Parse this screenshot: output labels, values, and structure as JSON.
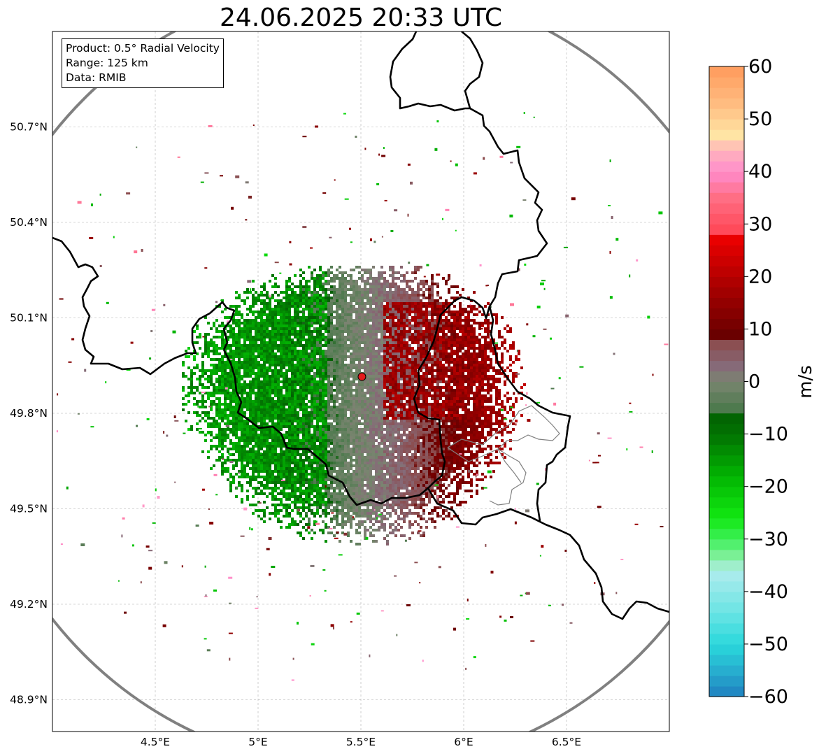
{
  "title": "24.06.2025 20:33 UTC",
  "info_box": {
    "product": "Product: 0.5° Radial Velocity",
    "range": "Range: 125 km",
    "data": "Data: RMIB"
  },
  "map": {
    "lon_range": [
      4.0,
      7.0
    ],
    "lat_range": [
      48.8,
      51.0
    ],
    "lon_ticks": [
      {
        "value": 4.5,
        "label": "4.5°E"
      },
      {
        "value": 5.0,
        "label": "5°E"
      },
      {
        "value": 5.5,
        "label": "5.5°E"
      },
      {
        "value": 6.0,
        "label": "6°E"
      },
      {
        "value": 6.5,
        "label": "6.5°E"
      }
    ],
    "lat_ticks": [
      {
        "value": 48.9,
        "label": "48.9°N"
      },
      {
        "value": 49.2,
        "label": "49.2°N"
      },
      {
        "value": 49.5,
        "label": "49.5°N"
      },
      {
        "value": 49.8,
        "label": "49.8°N"
      },
      {
        "value": 50.1,
        "label": "50.1°N"
      },
      {
        "value": 50.4,
        "label": "50.4°N"
      },
      {
        "value": 50.7,
        "label": "50.7°N"
      }
    ],
    "radar_site": {
      "lon": 5.505,
      "lat": 49.915
    },
    "range_ring_color": "#808080",
    "border_color": "#000000",
    "admin_border_color": "#808080",
    "site_marker_color": "#e31a1c"
  },
  "colorbar": {
    "label": "m/s",
    "range": [
      -60,
      60
    ],
    "ticks": [
      {
        "value": 60,
        "label": "60"
      },
      {
        "value": 50,
        "label": "50"
      },
      {
        "value": 40,
        "label": "40"
      },
      {
        "value": 30,
        "label": "30"
      },
      {
        "value": 20,
        "label": "20"
      },
      {
        "value": 10,
        "label": "10"
      },
      {
        "value": 0,
        "label": "0"
      },
      {
        "value": -10,
        "label": "−10"
      },
      {
        "value": -20,
        "label": "−20"
      },
      {
        "value": -30,
        "label": "−30"
      },
      {
        "value": -40,
        "label": "−40"
      },
      {
        "value": -50,
        "label": "−50"
      },
      {
        "value": -60,
        "label": "−60"
      }
    ],
    "color_stops": [
      {
        "value": -60,
        "color": "#1f7fc0"
      },
      {
        "value": -56,
        "color": "#26a6cc"
      },
      {
        "value": -50,
        "color": "#2ad8dc"
      },
      {
        "value": -44,
        "color": "#6ae4e4"
      },
      {
        "value": -36,
        "color": "#b0eced"
      },
      {
        "value": -34,
        "color": "#8ef0a8"
      },
      {
        "value": -30,
        "color": "#3ef05a"
      },
      {
        "value": -26,
        "color": "#12e812"
      },
      {
        "value": -18,
        "color": "#02b402"
      },
      {
        "value": -10,
        "color": "#027202"
      },
      {
        "value": -6,
        "color": "#026002"
      },
      {
        "value": -5,
        "color": "#4e7a4e"
      },
      {
        "value": 0,
        "color": "#7a8570"
      },
      {
        "value": 3,
        "color": "#866a78"
      },
      {
        "value": 8,
        "color": "#8c4848"
      },
      {
        "value": 9,
        "color": "#6a0000"
      },
      {
        "value": 18,
        "color": "#a80000"
      },
      {
        "value": 28,
        "color": "#f00000"
      },
      {
        "value": 29,
        "color": "#ff4a5a"
      },
      {
        "value": 35,
        "color": "#ff6e84"
      },
      {
        "value": 40,
        "color": "#ff8ccc"
      },
      {
        "value": 44,
        "color": "#ffb4bc"
      },
      {
        "value": 47,
        "color": "#ffe4a4"
      },
      {
        "value": 53,
        "color": "#ffbc80"
      },
      {
        "value": 60,
        "color": "#ff9a5c"
      }
    ]
  }
}
